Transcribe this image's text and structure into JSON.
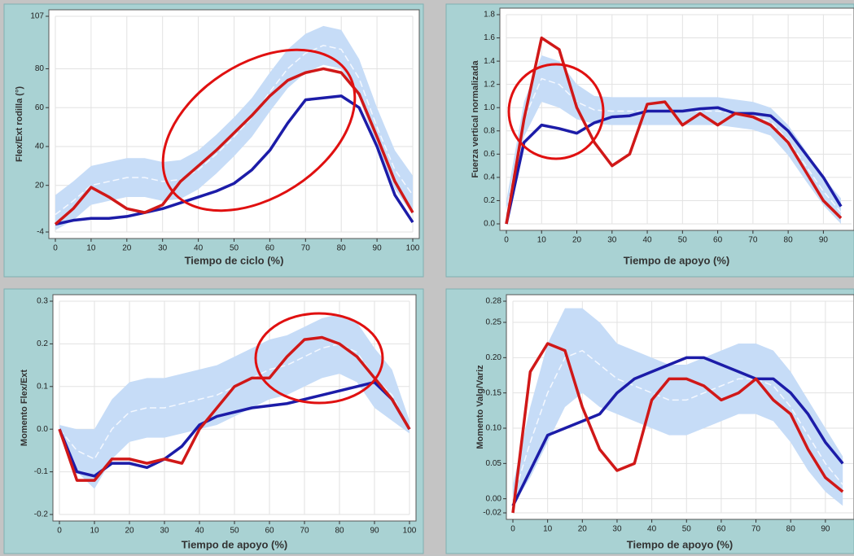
{
  "chart_data": [
    {
      "type": "line",
      "xlabel": "Tiempo de ciclo (%)",
      "ylabel": "Flex/Ext rodilla (°)",
      "x": [
        0,
        5,
        10,
        15,
        20,
        25,
        30,
        35,
        40,
        45,
        50,
        55,
        60,
        65,
        70,
        75,
        80,
        85,
        90,
        95,
        100
      ],
      "xlim": [
        0,
        100
      ],
      "xticks": [
        0,
        10,
        20,
        30,
        40,
        50,
        60,
        70,
        80,
        90,
        100
      ],
      "ylim": [
        -4,
        107
      ],
      "yticks": [
        -4,
        20,
        40,
        60,
        80,
        107
      ],
      "grid": true,
      "band": {
        "color": "#c6dcf7",
        "upper": [
          15,
          22,
          30,
          32,
          34,
          34,
          32,
          33,
          38,
          46,
          55,
          65,
          78,
          90,
          98,
          102,
          100,
          85,
          60,
          38,
          25
        ],
        "lower": [
          -3,
          2,
          10,
          12,
          14,
          14,
          12,
          13,
          18,
          26,
          35,
          45,
          58,
          70,
          78,
          82,
          80,
          65,
          40,
          18,
          5
        ]
      },
      "series": [
        {
          "color": "#d01818",
          "values": [
            0,
            8,
            19,
            14,
            8,
            6,
            10,
            22,
            30,
            38,
            47,
            56,
            66,
            74,
            78,
            80,
            78,
            67,
            45,
            22,
            6
          ]
        },
        {
          "color": "#1c1ca8",
          "values": [
            0,
            2,
            3,
            3,
            4,
            6,
            8,
            11,
            14,
            17,
            21,
            28,
            38,
            52,
            64,
            65,
            66,
            60,
            40,
            15,
            1
          ]
        },
        {
          "color": "#f4f8ff",
          "dash": true,
          "values": [
            5,
            12,
            20,
            22,
            24,
            24,
            22,
            23,
            28,
            36,
            45,
            55,
            68,
            80,
            88,
            92,
            90,
            75,
            50,
            28,
            15
          ]
        }
      ]
    },
    {
      "type": "line",
      "xlabel": "Tiempo de apoyo (%)",
      "ylabel": "Fuerza vertical normalizada",
      "x": [
        0,
        5,
        10,
        15,
        20,
        25,
        30,
        35,
        40,
        45,
        50,
        55,
        60,
        65,
        70,
        75,
        80,
        85,
        90,
        95
      ],
      "xlim": [
        0,
        98
      ],
      "xticks": [
        0,
        10,
        20,
        30,
        40,
        50,
        60,
        70,
        80,
        90
      ],
      "ylim": [
        0,
        1.8
      ],
      "yticks": [
        {
          "value": 0,
          "label": "0.0"
        },
        0.2,
        0.4,
        0.6,
        0.8,
        {
          "value": 1,
          "label": "1.0"
        },
        1.2,
        1.4,
        1.6,
        1.8
      ],
      "grid": true,
      "band": {
        "color": "#c6dcf7",
        "upper": [
          0.2,
          1.05,
          1.45,
          1.4,
          1.2,
          1.1,
          1.09,
          1.09,
          1.09,
          1.09,
          1.09,
          1.09,
          1.09,
          1.07,
          1.05,
          1.0,
          0.85,
          0.63,
          0.4,
          0.22
        ],
        "lower": [
          0,
          0.75,
          1.05,
          1.0,
          0.9,
          0.86,
          0.85,
          0.85,
          0.85,
          0.85,
          0.85,
          0.85,
          0.85,
          0.83,
          0.81,
          0.76,
          0.59,
          0.37,
          0.16,
          0
        ],
        "_": null
      },
      "series": [
        {
          "color": "#d01818",
          "values": [
            0,
            0.9,
            1.6,
            1.5,
            1.0,
            0.7,
            0.5,
            0.6,
            1.03,
            1.05,
            0.85,
            0.95,
            0.85,
            0.95,
            0.92,
            0.85,
            0.7,
            0.45,
            0.2,
            0.05
          ]
        },
        {
          "color": "#1c1ca8",
          "values": [
            0,
            0.7,
            0.85,
            0.82,
            0.78,
            0.87,
            0.92,
            0.93,
            0.97,
            0.97,
            0.97,
            0.99,
            1.0,
            0.95,
            0.95,
            0.93,
            0.8,
            0.6,
            0.4,
            0.15
          ]
        },
        {
          "color": "#f4f8ff",
          "dash": true,
          "values": [
            0.1,
            0.9,
            1.25,
            1.2,
            1.05,
            0.98,
            0.97,
            0.97,
            0.97,
            0.97,
            0.97,
            0.97,
            0.97,
            0.95,
            0.93,
            0.88,
            0.72,
            0.5,
            0.28,
            0.1
          ]
        }
      ]
    },
    {
      "type": "line",
      "xlabel": "Tiempo de apoyo (%)",
      "ylabel": "Momento Flex/Ext",
      "x": [
        0,
        5,
        10,
        15,
        20,
        25,
        30,
        35,
        40,
        45,
        50,
        55,
        60,
        65,
        70,
        75,
        80,
        85,
        90,
        95,
        100
      ],
      "xlim": [
        0,
        100
      ],
      "xticks": [
        0,
        10,
        20,
        30,
        40,
        50,
        60,
        70,
        80,
        90,
        100
      ],
      "ylim": [
        -0.2,
        0.3
      ],
      "yticks": [
        -0.2,
        -0.1,
        {
          "value": 0,
          "label": "0.0"
        },
        0.1,
        0.2,
        0.3
      ],
      "grid": true,
      "band": {
        "color": "#c6dcf7",
        "upper": [
          0.01,
          0.0,
          0.0,
          0.07,
          0.11,
          0.12,
          0.12,
          0.13,
          0.14,
          0.15,
          0.17,
          0.19,
          0.21,
          0.22,
          0.24,
          0.26,
          0.27,
          0.25,
          0.19,
          0.14,
          0.02
        ],
        "lower": [
          -0.01,
          -0.1,
          -0.14,
          -0.07,
          -0.03,
          -0.02,
          -0.02,
          -0.01,
          0.0,
          0.01,
          0.03,
          0.05,
          0.07,
          0.08,
          0.1,
          0.12,
          0.13,
          0.11,
          0.05,
          0.02,
          -0.01
        ]
      },
      "series": [
        {
          "color": "#d01818",
          "values": [
            0,
            -0.12,
            -0.12,
            -0.07,
            -0.07,
            -0.08,
            -0.07,
            -0.08,
            0,
            0.05,
            0.1,
            0.12,
            0.12,
            0.17,
            0.21,
            0.215,
            0.2,
            0.17,
            0.12,
            0.07,
            0
          ]
        },
        {
          "color": "#1c1ca8",
          "values": [
            0,
            -0.1,
            -0.11,
            -0.08,
            -0.08,
            -0.09,
            -0.07,
            -0.04,
            0.01,
            0.03,
            0.04,
            0.05,
            0.055,
            0.06,
            0.07,
            0.08,
            0.09,
            0.1,
            0.11,
            0.07,
            0
          ]
        },
        {
          "color": "#f4f8ff",
          "dash": true,
          "values": [
            0,
            -0.05,
            -0.07,
            0,
            0.04,
            0.05,
            0.05,
            0.06,
            0.07,
            0.08,
            0.1,
            0.12,
            0.14,
            0.15,
            0.17,
            0.19,
            0.2,
            0.18,
            0.12,
            0.08,
            0
          ]
        }
      ]
    },
    {
      "type": "line",
      "xlabel": "Tiempo de apoyo (%)",
      "ylabel": "Momento Valg/Variz",
      "x": [
        0,
        5,
        10,
        15,
        20,
        25,
        30,
        35,
        40,
        45,
        50,
        55,
        60,
        65,
        70,
        75,
        80,
        85,
        90,
        95
      ],
      "xlim": [
        0,
        98
      ],
      "xticks": [
        0,
        10,
        20,
        30,
        40,
        50,
        60,
        70,
        80,
        90
      ],
      "ylim": [
        -0.02,
        0.28
      ],
      "yticks": [
        -0.02,
        {
          "value": 0,
          "label": "0.00"
        },
        0.05,
        {
          "value": 0.1,
          "label": "0.10"
        },
        0.15,
        {
          "value": 0.2,
          "label": "0.20"
        },
        0.25,
        0.28
      ],
      "grid": true,
      "band": {
        "color": "#c6dcf7",
        "upper": [
          0.02,
          0.13,
          0.22,
          0.27,
          0.27,
          0.25,
          0.22,
          0.21,
          0.2,
          0.19,
          0.19,
          0.2,
          0.21,
          0.22,
          0.22,
          0.21,
          0.18,
          0.14,
          0.1,
          0.06
        ],
        "lower": [
          -0.01,
          0.03,
          0.08,
          0.13,
          0.15,
          0.13,
          0.12,
          0.11,
          0.1,
          0.09,
          0.09,
          0.1,
          0.11,
          0.12,
          0.12,
          0.11,
          0.08,
          0.04,
          0.01,
          -0.01
        ]
      },
      "series": [
        {
          "color": "#d01818",
          "values": [
            -0.02,
            0.18,
            0.22,
            0.21,
            0.13,
            0.07,
            0.04,
            0.05,
            0.14,
            0.17,
            0.17,
            0.16,
            0.14,
            0.15,
            0.17,
            0.14,
            0.12,
            0.07,
            0.03,
            0.01
          ]
        },
        {
          "color": "#1c1ca8",
          "values": [
            -0.01,
            0.04,
            0.09,
            0.1,
            0.11,
            0.12,
            0.15,
            0.17,
            0.18,
            0.19,
            0.2,
            0.2,
            0.19,
            0.18,
            0.17,
            0.17,
            0.15,
            0.12,
            0.08,
            0.05
          ]
        },
        {
          "color": "#f4f8ff",
          "dash": true,
          "values": [
            0,
            0.08,
            0.15,
            0.2,
            0.21,
            0.19,
            0.17,
            0.16,
            0.15,
            0.14,
            0.14,
            0.15,
            0.16,
            0.17,
            0.17,
            0.16,
            0.13,
            0.09,
            0.05,
            0.02
          ]
        }
      ]
    }
  ]
}
